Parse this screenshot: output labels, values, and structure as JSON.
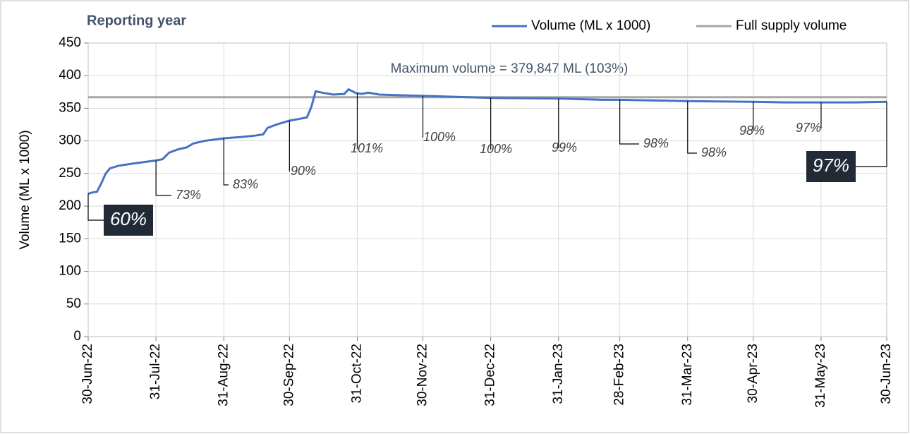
{
  "chart_data": {
    "type": "line",
    "title": "Reporting year",
    "y_label": "Volume (ML x 1000)",
    "ylim": [
      0,
      450
    ],
    "yticks": [
      0,
      50,
      100,
      150,
      200,
      250,
      300,
      350,
      400,
      450
    ],
    "xlim": [
      "2022-06-30",
      "2023-06-30"
    ],
    "xticks": [
      {
        "value": "2022-06-30",
        "label": "30-Jun-22"
      },
      {
        "value": "2022-07-31",
        "label": "31-Jul-22"
      },
      {
        "value": "2022-08-31",
        "label": "31-Aug-22"
      },
      {
        "value": "2022-09-30",
        "label": "30-Sep-22"
      },
      {
        "value": "2022-10-31",
        "label": "31-Oct-22"
      },
      {
        "value": "2022-11-30",
        "label": "30-Nov-22"
      },
      {
        "value": "2022-12-31",
        "label": "31-Dec-22"
      },
      {
        "value": "2023-01-31",
        "label": "31-Jan-23"
      },
      {
        "value": "2023-02-28",
        "label": "28-Feb-23"
      },
      {
        "value": "2023-03-31",
        "label": "31-Mar-23"
      },
      {
        "value": "2023-04-30",
        "label": "30-Apr-23"
      },
      {
        "value": "2023-05-31",
        "label": "31-May-23"
      },
      {
        "value": "2023-06-30",
        "label": "30-Jun-23"
      }
    ],
    "grid": true,
    "legend": "top-right",
    "x": [
      "2022-06-30",
      "2022-07-02",
      "2022-07-04",
      "2022-07-06",
      "2022-07-08",
      "2022-07-10",
      "2022-07-14",
      "2022-07-20",
      "2022-07-31",
      "2022-08-03",
      "2022-08-06",
      "2022-08-10",
      "2022-08-14",
      "2022-08-17",
      "2022-08-22",
      "2022-08-31",
      "2022-09-08",
      "2022-09-14",
      "2022-09-18",
      "2022-09-20",
      "2022-09-24",
      "2022-09-30",
      "2022-10-05",
      "2022-10-08",
      "2022-10-10",
      "2022-10-12",
      "2022-10-15",
      "2022-10-20",
      "2022-10-25",
      "2022-10-27",
      "2022-10-30",
      "2022-10-31",
      "2022-11-02",
      "2022-11-05",
      "2022-11-10",
      "2022-11-20",
      "2022-11-30",
      "2022-12-10",
      "2022-12-31",
      "2023-01-31",
      "2023-02-20",
      "2023-02-28",
      "2023-03-31",
      "2023-04-30",
      "2023-05-15",
      "2023-05-31",
      "2023-06-15",
      "2023-06-30"
    ],
    "series": [
      {
        "name": "Volume (ML x 1000)",
        "color": "#4472c4",
        "values": [
          219,
          221,
          222,
          235,
          250,
          258,
          262,
          265,
          270,
          272,
          282,
          287,
          290,
          296,
          300,
          304,
          306,
          308,
          310,
          320,
          325,
          331,
          334,
          336,
          352,
          376,
          374,
          371,
          372,
          379,
          374,
          373,
          372,
          374,
          371,
          370,
          369,
          368,
          366,
          365,
          363,
          363,
          361,
          360,
          359,
          359,
          359,
          360
        ]
      }
    ],
    "reference_line": {
      "name": "Full supply volume",
      "value": 367,
      "color": "#a6a6a6"
    },
    "annotation": "Maximum volume = 379,847 ML (103%)",
    "point_labels": [
      {
        "x": "2022-06-30",
        "label": "60%",
        "highlight": true
      },
      {
        "x": "2022-07-31",
        "label": "73%"
      },
      {
        "x": "2022-08-31",
        "label": "83%"
      },
      {
        "x": "2022-09-30",
        "label": "90%"
      },
      {
        "x": "2022-10-31",
        "label": "101%"
      },
      {
        "x": "2022-11-30",
        "label": "100%"
      },
      {
        "x": "2022-12-31",
        "label": "100%"
      },
      {
        "x": "2023-01-31",
        "label": "99%"
      },
      {
        "x": "2023-02-28",
        "label": "98%"
      },
      {
        "x": "2023-03-31",
        "label": "98%"
      },
      {
        "x": "2023-04-30",
        "label": "98%"
      },
      {
        "x": "2023-05-31",
        "label": "97%"
      },
      {
        "x": "2023-06-30",
        "label": "97%",
        "highlight": true
      }
    ]
  }
}
